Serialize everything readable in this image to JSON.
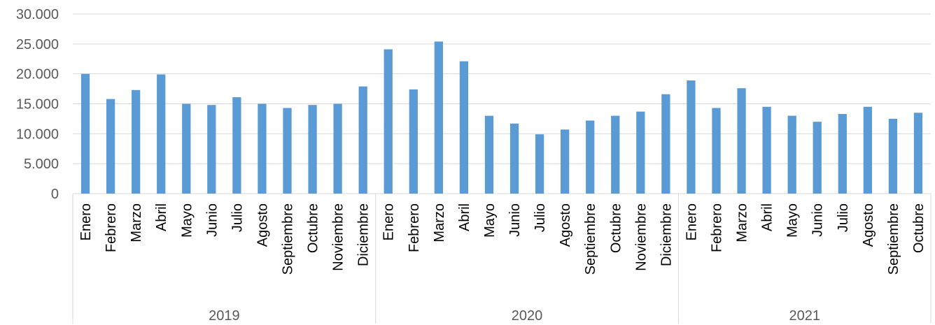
{
  "chart_data": {
    "type": "bar",
    "title": "",
    "xlabel": "",
    "ylabel": "",
    "ylim": [
      0,
      30000
    ],
    "yticks": [
      0,
      5000,
      10000,
      15000,
      20000,
      25000,
      30000
    ],
    "ytick_labels": [
      "0",
      "5.000",
      "10.000",
      "15.000",
      "20.000",
      "25.000",
      "30.000"
    ],
    "grid": true,
    "legend": "none",
    "bar_color": "#5B9BD5",
    "groups": [
      {
        "label": "2019",
        "categories": [
          "Enero",
          "Febrero",
          "Marzo",
          "Abril",
          "Mayo",
          "Junio",
          "Julio",
          "Agosto",
          "Septiembre",
          "Octubre",
          "Noviembre",
          "Diciembre"
        ],
        "values": [
          20000,
          15800,
          17300,
          19900,
          15000,
          14800,
          16100,
          15000,
          14300,
          14800,
          15000,
          17900
        ]
      },
      {
        "label": "2020",
        "categories": [
          "Enero",
          "Febrero",
          "Marzo",
          "Abril",
          "Mayo",
          "Junio",
          "Julio",
          "Agosto",
          "Septiembre",
          "Octubre",
          "Noviembre",
          "Diciembre"
        ],
        "values": [
          24100,
          17400,
          25400,
          22100,
          13000,
          11700,
          9900,
          10700,
          12200,
          13000,
          13700,
          16600
        ]
      },
      {
        "label": "2021",
        "categories": [
          "Enero",
          "Febrero",
          "Marzo",
          "Abril",
          "Mayo",
          "Junio",
          "Julio",
          "Agosto",
          "Septiembre",
          "Octubre"
        ],
        "values": [
          18900,
          14300,
          17600,
          14500,
          13000,
          12000,
          13300,
          14500,
          12500,
          13500
        ]
      }
    ]
  }
}
